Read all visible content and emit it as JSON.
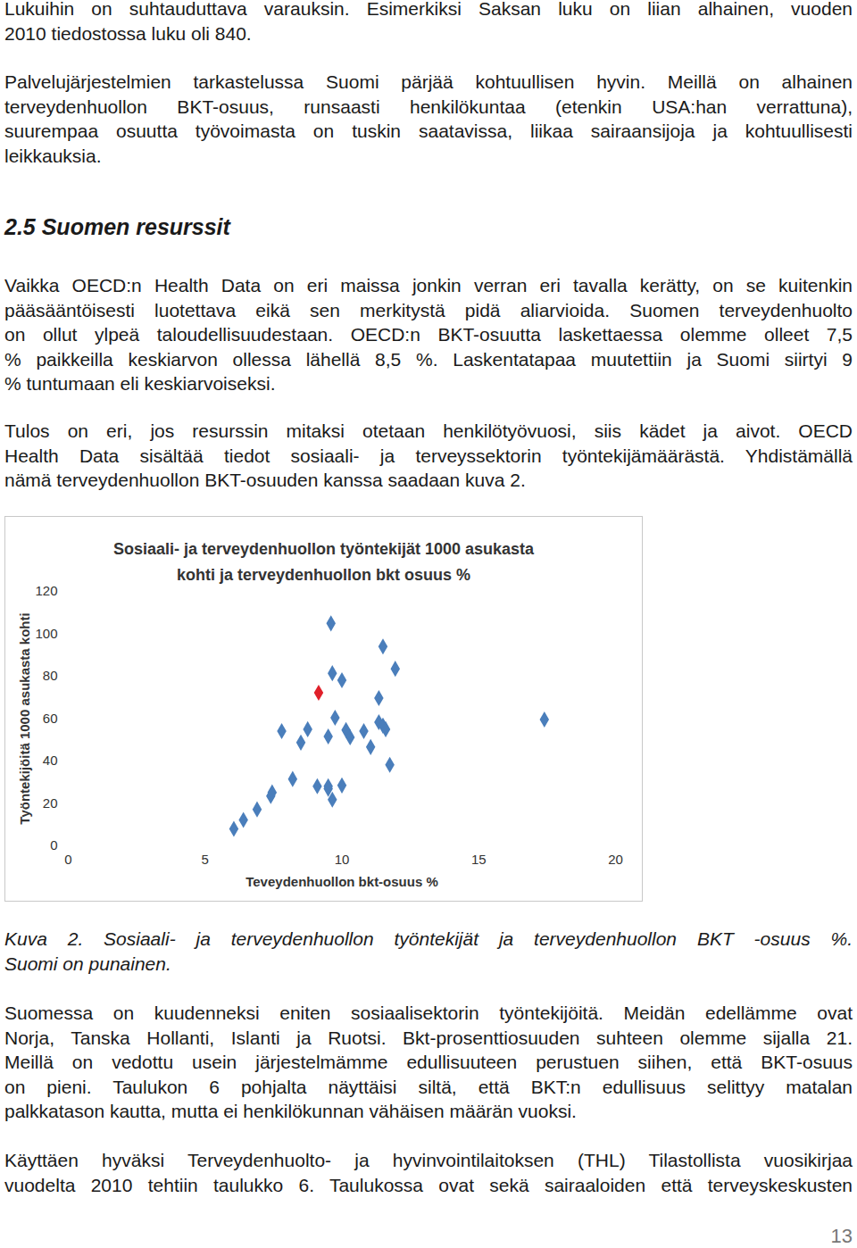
{
  "top_paragraphs": [
    {
      "lines": [
        "Lukuihin on suhtauduttava varauksin. Esimerkiksi Saksan luku on liian alhainen, vuoden",
        "2010 tiedostossa luku oli 840."
      ]
    },
    {
      "lines": [
        "Palvelujärjestelmien tarkastelussa Suomi pärjää kohtuullisen hyvin. Meillä on alhainen",
        "terveydenhuollon BKT-osuus, runsaasti henkilökuntaa (etenkin USA:han verrattuna),",
        "suurempaa osuutta työvoimasta on tuskin saatavissa, liikaa sairaansijoja ja kohtuullisesti",
        "leikkauksia."
      ]
    }
  ],
  "heading": "2.5 Suomen resurssit",
  "middle_paragraphs": [
    {
      "lines": [
        "Vaikka OECD:n Health Data on eri maissa jonkin verran eri tavalla kerätty, on se kuitenkin",
        "pääsääntöisesti luotettava eikä sen merkitystä pidä aliarvioida. Suomen terveydenhuolto",
        "on ollut ylpeä taloudellisuudestaan. OECD:n BKT-osuutta laskettaessa olemme olleet 7,5",
        "% paikkeilla keskiarvon ollessa lähellä 8,5 %. Laskentatapaa muutettiin ja Suomi siirtyi 9",
        "% tuntumaan eli keskiarvoiseksi."
      ]
    },
    {
      "lines": [
        "Tulos on eri, jos resurssin mitaksi otetaan henkilötyövuosi, siis kädet ja aivot. OECD",
        "Health Data sisältää tiedot sosiaali- ja terveyssektorin työntekijämäärästä. Yhdistämällä",
        "nämä terveydenhuollon BKT-osuuden kanssa saadaan kuva 2."
      ]
    }
  ],
  "chart_data": {
    "type": "scatter",
    "title": [
      "Sosiaali- ja terveydenhuollon työntekijät 1000 asukasta",
      "kohti ja terveydenhuollon bkt osuus %"
    ],
    "x_label": "Teveydenhuollon bkt-osuus %",
    "y_label": "Työntekijöitä 1000 asukasta kohti",
    "x": [
      6.05,
      6.4,
      6.9,
      7.4,
      7.45,
      8.2,
      7.8,
      8.5,
      8.75,
      9.15,
      9.6,
      9.65,
      10.0,
      9.75,
      9.5,
      10.15,
      9.1,
      9.5,
      9.5,
      9.65,
      10.0,
      10.3,
      10.8,
      11.05,
      11.5,
      11.95,
      11.35,
      11.35,
      11.5,
      11.6,
      11.75,
      17.4
    ],
    "y": [
      8.0,
      12.2,
      17.2,
      23.5,
      25.2,
      31.5,
      54.1,
      48.7,
      55.0,
      72.2,
      104.9,
      81.4,
      78.1,
      60.4,
      51.6,
      54.6,
      28.1,
      28.1,
      26.9,
      21.8,
      28.5,
      51.2,
      54.1,
      46.6,
      94.0,
      83.5,
      69.7,
      58.3,
      56.7,
      55.0,
      38.2,
      59.6
    ],
    "colors": [
      "#4a7ebb",
      "#4a7ebb",
      "#4a7ebb",
      "#4a7ebb",
      "#4a7ebb",
      "#4a7ebb",
      "#4a7ebb",
      "#4a7ebb",
      "#4a7ebb",
      "#e0202a",
      "#4a7ebb",
      "#4a7ebb",
      "#4a7ebb",
      "#4a7ebb",
      "#4a7ebb",
      "#4a7ebb",
      "#4a7ebb",
      "#4a7ebb",
      "#4a7ebb",
      "#4a7ebb",
      "#4a7ebb",
      "#4a7ebb",
      "#4a7ebb",
      "#4a7ebb",
      "#4a7ebb",
      "#4a7ebb",
      "#4a7ebb",
      "#4a7ebb",
      "#4a7ebb",
      "#4a7ebb",
      "#4a7ebb",
      "#4a7ebb"
    ],
    "marker": "diamond",
    "xlim": [
      0,
      20
    ],
    "xticks": [
      0,
      5,
      10,
      15,
      20
    ],
    "ylim": [
      0,
      120
    ],
    "yticks": [
      0,
      20,
      40,
      60,
      80,
      100,
      120
    ],
    "grid": false
  },
  "caption": [
    "Kuva 2. Sosiaali- ja terveydenhuollon työntekijät ja terveydenhuollon BKT -osuus %.",
    "Suomi on punainen."
  ],
  "bottom_paragraphs": [
    {
      "lines": [
        "Suomessa on kuudenneksi eniten sosiaalisektorin työntekijöitä. Meidän edellämme ovat",
        "Norja, Tanska Hollanti, Islanti ja Ruotsi. Bkt-prosenttiosuuden suhteen olemme sijalla 21.",
        "Meillä on vedottu usein järjestelmämme edullisuuteen perustuen siihen, että BKT-osuus",
        "on pieni. Taulukon 6 pohjalta näyttäisi siltä, että BKT:n edullisuus selittyy matalan",
        "palkkatason kautta, mutta ei henkilökunnan vähäisen määrän vuoksi."
      ]
    },
    {
      "lines": [
        "Käyttäen hyväksi Terveydenhuolto- ja hyvinvointilaitoksen (THL) Tilastollista vuosikirjaa",
        "vuodelta 2010 tehtiin taulukko 6. Taulukossa ovat sekä sairaaloiden että terveyskeskusten"
      ],
      "continues": true
    }
  ],
  "page_number": "13"
}
